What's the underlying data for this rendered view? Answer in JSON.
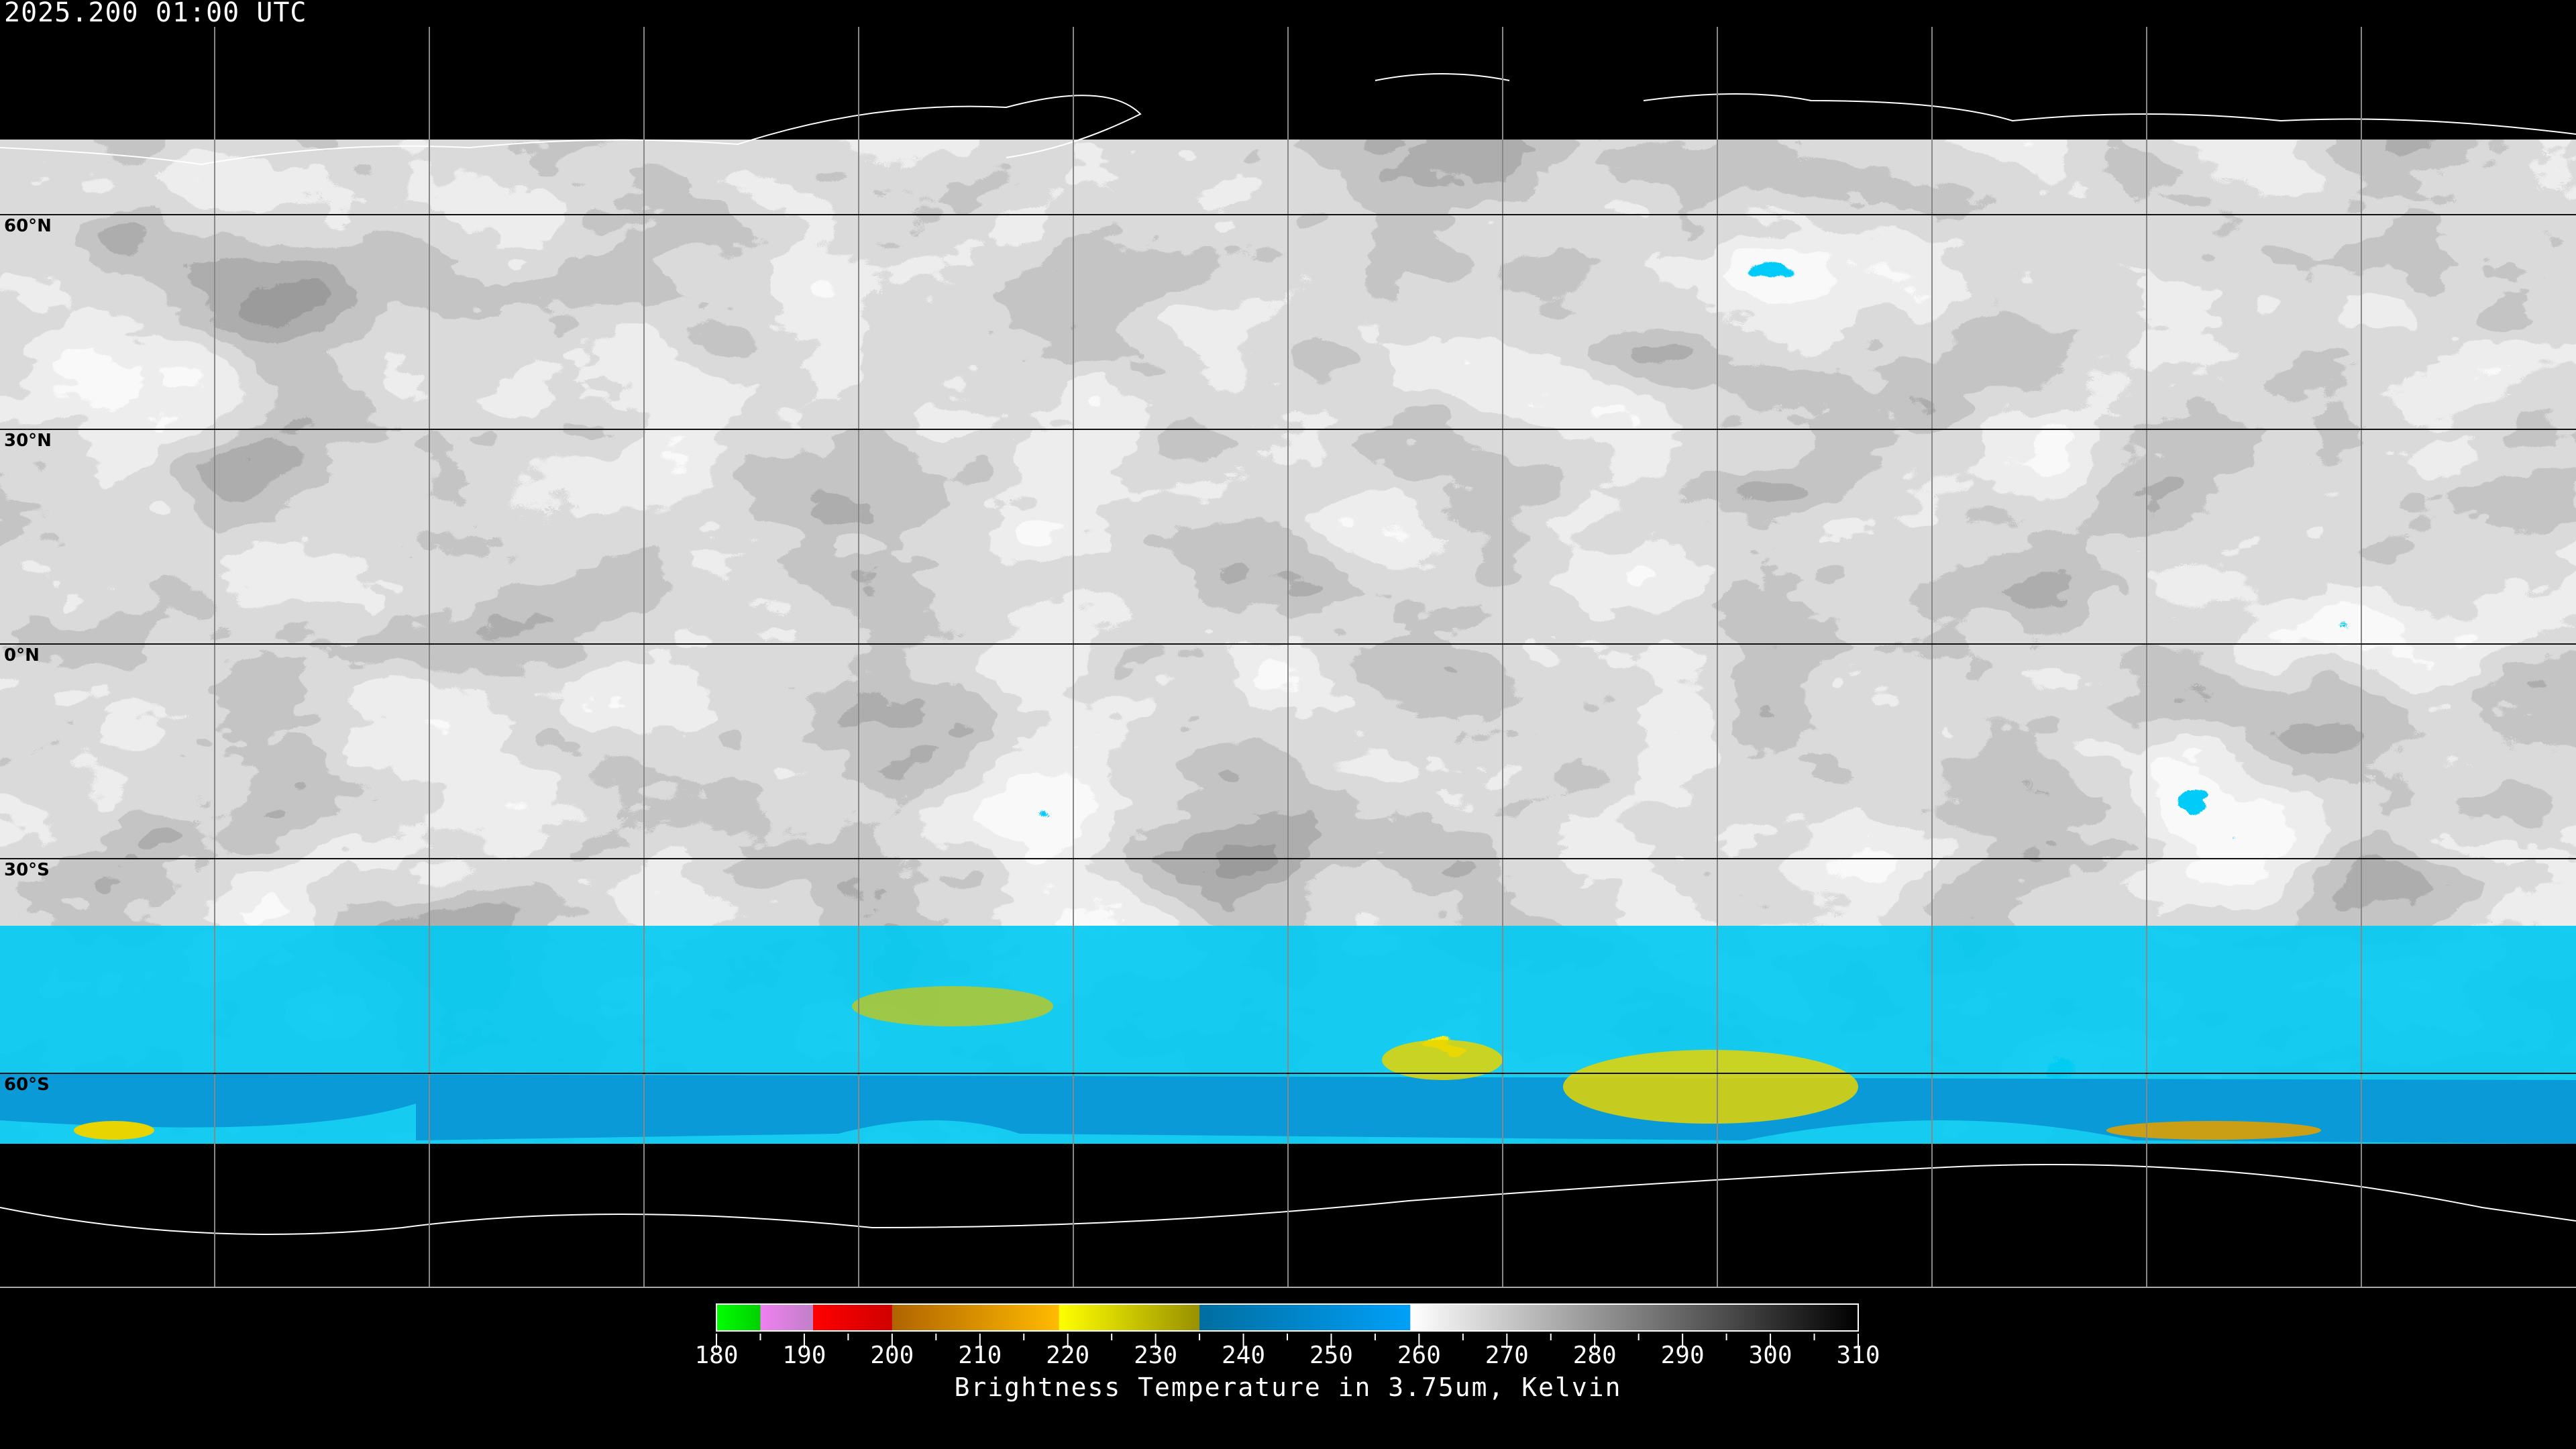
{
  "header": {
    "title": "2025.200 01:00 UTC"
  },
  "map": {
    "projection": "equirectangular",
    "latitude_labels": [
      "60°N",
      "30°N",
      "0°N",
      "30°S",
      "60°S"
    ],
    "grid_spacing_degrees": 30
  },
  "colorbar": {
    "label": "Brightness Temperature in 3.75um, Kelvin",
    "range": [
      180,
      310
    ],
    "tick_labels": [
      "180",
      "190",
      "200",
      "210",
      "220",
      "230",
      "240",
      "250",
      "260",
      "270",
      "280",
      "290",
      "300",
      "310"
    ],
    "segments": [
      {
        "from": 180,
        "to": 185,
        "colors": [
          "#00ff00",
          "#00d000"
        ]
      },
      {
        "from": 185,
        "to": 191,
        "colors": [
          "#f080f0",
          "#c080c8"
        ]
      },
      {
        "from": 191,
        "to": 200,
        "colors": [
          "#ff0000",
          "#d00000"
        ]
      },
      {
        "from": 200,
        "to": 219,
        "colors": [
          "#b06400",
          "#ffbb00"
        ]
      },
      {
        "from": 219,
        "to": 235,
        "colors": [
          "#ffff00",
          "#989000"
        ]
      },
      {
        "from": 235,
        "to": 259,
        "colors": [
          "#006ea0",
          "#00a0f8"
        ]
      },
      {
        "from": 259,
        "to": 310,
        "colors": [
          "#ffffff",
          "#000000"
        ]
      }
    ]
  }
}
